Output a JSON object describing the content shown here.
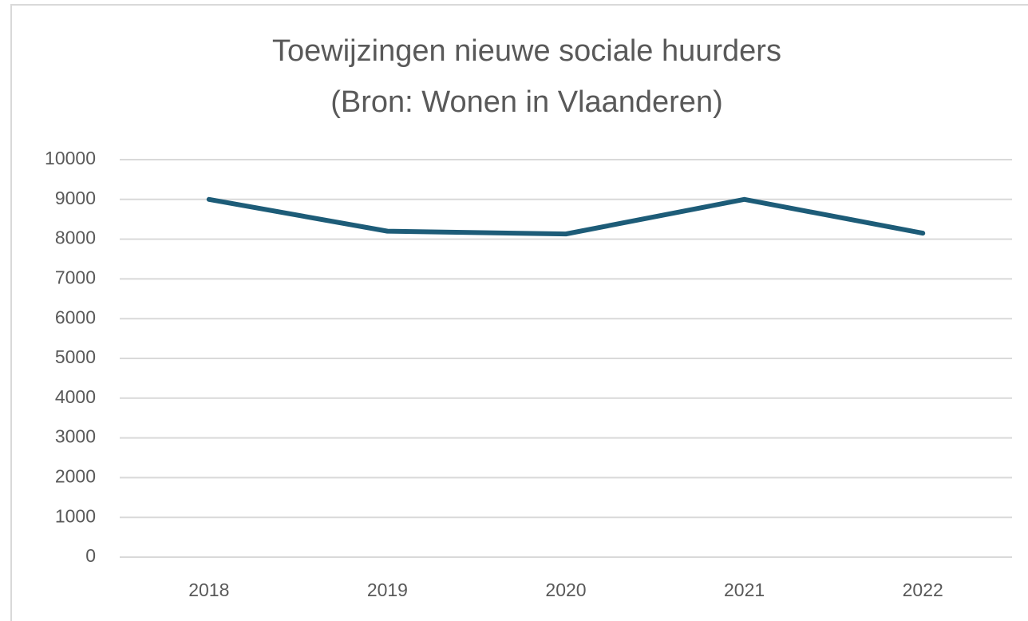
{
  "chart_data": {
    "type": "line",
    "title": "Toewijzingen nieuwe sociale huurders",
    "subtitle": "(Bron: Wonen in Vlaanderen)",
    "categories": [
      "2018",
      "2019",
      "2020",
      "2021",
      "2022"
    ],
    "values": [
      9000,
      8200,
      8130,
      9000,
      8150
    ],
    "color": "#1d5c78",
    "ylim": [
      0,
      10000
    ],
    "yticks": [
      0,
      1000,
      2000,
      3000,
      4000,
      5000,
      6000,
      7000,
      8000,
      9000,
      10000
    ],
    "grid": true
  }
}
